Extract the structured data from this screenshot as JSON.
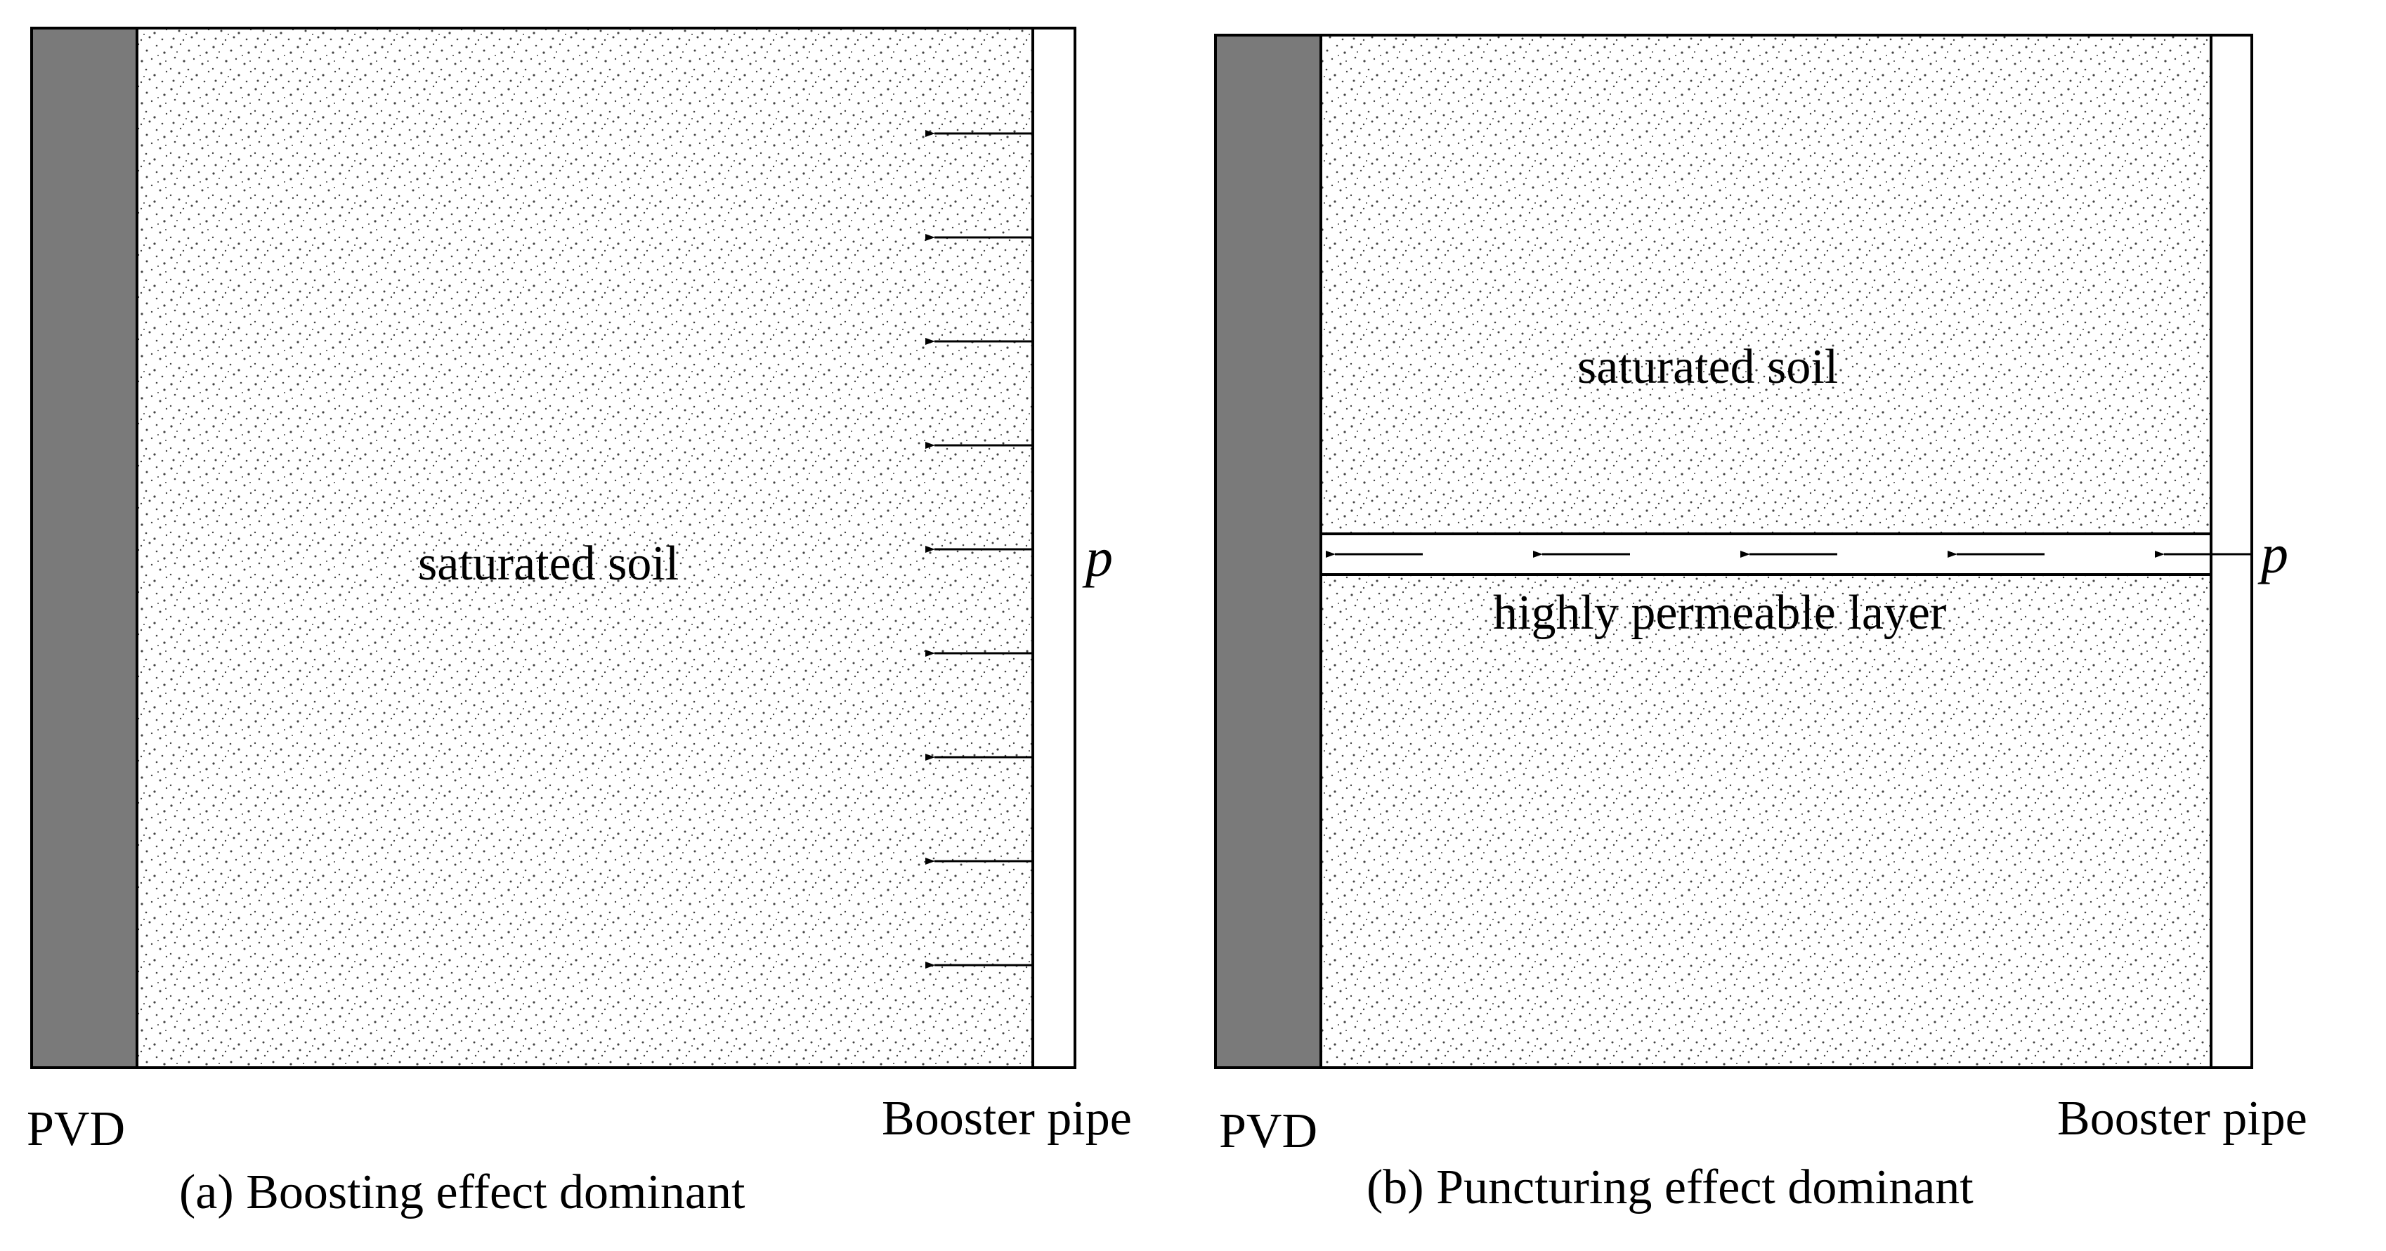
{
  "colors": {
    "pvd_fill": "#7a7a7a",
    "soil_fill": "#ffffff",
    "speckle": "#444444",
    "line": "#000000"
  },
  "panel_a": {
    "soil_label": "saturated soil",
    "pvd_label": "PVD",
    "pipe_label": "Booster pipe",
    "pressure_label": "p",
    "caption": "(a)  Boosting effect dominant",
    "arrow_count": 9,
    "arrow_direction": "left"
  },
  "panel_b": {
    "upper_soil_label": "saturated soil",
    "layer_label": "highly permeable layer",
    "pvd_label": "PVD",
    "pipe_label": "Booster pipe",
    "pressure_label": "p",
    "caption": "(b) Puncturing effect dominant",
    "arrow_count": 5,
    "arrow_direction": "left"
  }
}
